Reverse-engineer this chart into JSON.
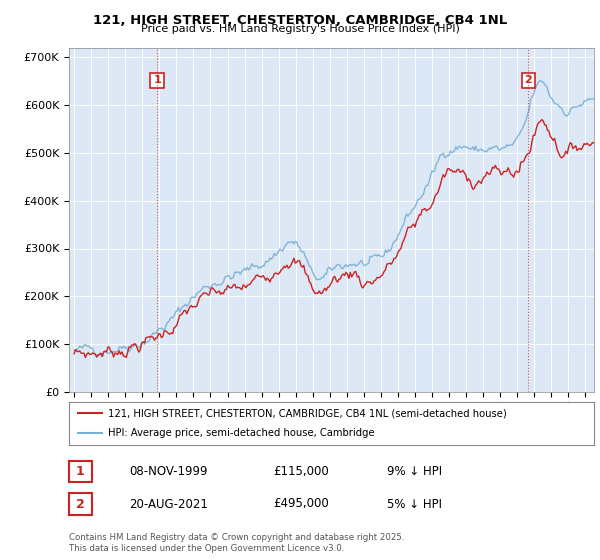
{
  "title_line1": "121, HIGH STREET, CHESTERTON, CAMBRIDGE, CB4 1NL",
  "title_line2": "Price paid vs. HM Land Registry's House Price Index (HPI)",
  "background_color": "#ffffff",
  "plot_bg_color": "#dce8f5",
  "grid_color": "#ffffff",
  "hpi_color": "#7aafd4",
  "price_color": "#cc2222",
  "marker1_year": 1999.87,
  "marker2_year": 2021.64,
  "legend_label1": "121, HIGH STREET, CHESTERTON, CAMBRIDGE, CB4 1NL (semi-detached house)",
  "legend_label2": "HPI: Average price, semi-detached house, Cambridge",
  "table_row1": [
    "1",
    "08-NOV-1999",
    "£115,000",
    "9% ↓ HPI"
  ],
  "table_row2": [
    "2",
    "20-AUG-2021",
    "£495,000",
    "5% ↓ HPI"
  ],
  "footer": "Contains HM Land Registry data © Crown copyright and database right 2025.\nThis data is licensed under the Open Government Licence v3.0.",
  "ylim_max": 720000,
  "ylim_min": 0,
  "xmin": 1994.7,
  "xmax": 2025.5
}
